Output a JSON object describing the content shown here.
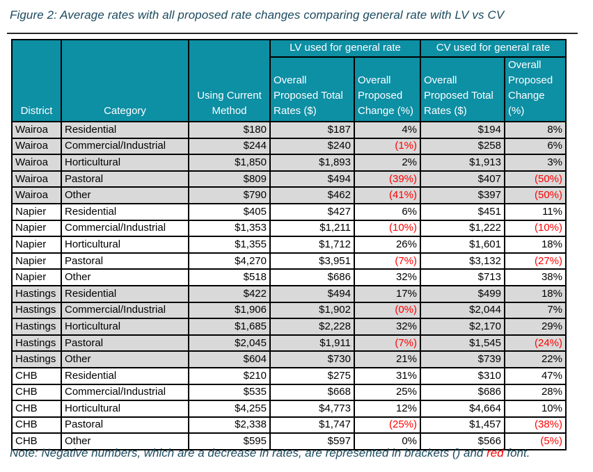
{
  "figure": {
    "title": "Figure 2: Average rates with all proposed rate changes comparing general rate with LV vs CV"
  },
  "note": {
    "prefix": "Note: Negative numbers, which are a decrease in rates, are represented in brackets () and ",
    "red_word": "red",
    "suffix": " font."
  },
  "colors": {
    "header_teal": "#0d8fa4",
    "title_text": "#1b4a5e",
    "negative_red": "#ff0000",
    "shaded_row_gray": "#d9d9d9",
    "border_black": "#000000"
  },
  "table": {
    "groups": {
      "lv": "LV used for general rate",
      "cv": "CV used for general rate"
    },
    "columns": {
      "district": "District",
      "category": "Category",
      "current": "Using Current Method",
      "proposed_rates": "Overall Proposed Total Rates ($)",
      "proposed_change": "Overall Proposed Change (%)"
    },
    "shaded_districts": [
      "Wairoa",
      "Hastings"
    ],
    "rows": [
      [
        "Wairoa",
        "Residential",
        "$180",
        "$187",
        "4%",
        "$194",
        "8%"
      ],
      [
        "Wairoa",
        "Commercial/Industrial",
        "$244",
        "$240",
        "(1%)",
        "$258",
        "6%"
      ],
      [
        "Wairoa",
        "Horticultural",
        "$1,850",
        "$1,893",
        "2%",
        "$1,913",
        "3%"
      ],
      [
        "Wairoa",
        "Pastoral",
        "$809",
        "$494",
        "(39%)",
        "$407",
        "(50%)"
      ],
      [
        "Wairoa",
        "Other",
        "$790",
        "$462",
        "(41%)",
        "$397",
        "(50%)"
      ],
      [
        "Napier",
        "Residential",
        "$405",
        "$427",
        "6%",
        "$451",
        "11%"
      ],
      [
        "Napier",
        "Commercial/Industrial",
        "$1,353",
        "$1,211",
        "(10%)",
        "$1,222",
        "(10%)"
      ],
      [
        "Napier",
        "Horticultural",
        "$1,355",
        "$1,712",
        "26%",
        "$1,601",
        "18%"
      ],
      [
        "Napier",
        "Pastoral",
        "$4,270",
        "$3,951",
        "(7%)",
        "$3,132",
        "(27%)"
      ],
      [
        "Napier",
        "Other",
        "$518",
        "$686",
        "32%",
        "$713",
        "38%"
      ],
      [
        "Hastings",
        "Residential",
        "$422",
        "$494",
        "17%",
        "$499",
        "18%"
      ],
      [
        "Hastings",
        "Commercial/Industrial",
        "$1,906",
        "$1,902",
        "(0%)",
        "$2,044",
        "7%"
      ],
      [
        "Hastings",
        "Horticultural",
        "$1,685",
        "$2,228",
        "32%",
        "$2,170",
        "29%"
      ],
      [
        "Hastings",
        "Pastoral",
        "$2,045",
        "$1,911",
        "(7%)",
        "$1,545",
        "(24%)"
      ],
      [
        "Hastings",
        "Other",
        "$604",
        "$730",
        "21%",
        "$739",
        "22%"
      ],
      [
        "CHB",
        "Residential",
        "$210",
        "$275",
        "31%",
        "$310",
        "47%"
      ],
      [
        "CHB",
        "Commercial/Industrial",
        "$535",
        "$668",
        "25%",
        "$686",
        "28%"
      ],
      [
        "CHB",
        "Horticultural",
        "$4,255",
        "$4,773",
        "12%",
        "$4,664",
        "10%"
      ],
      [
        "CHB",
        "Pastoral",
        "$2,338",
        "$1,747",
        "(25%)",
        "$1,457",
        "(38%)"
      ],
      [
        "CHB",
        "Other",
        "$595",
        "$597",
        "0%",
        "$566",
        "(5%)"
      ]
    ]
  }
}
